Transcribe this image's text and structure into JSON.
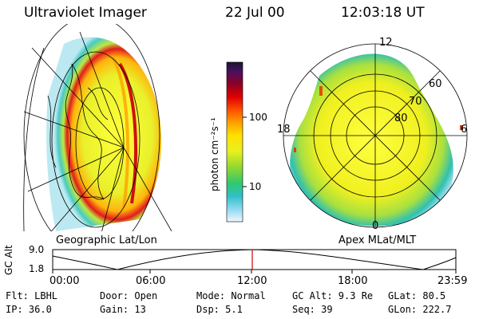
{
  "header": {
    "title": "Ultraviolet Imager",
    "date": "22 Jul 00",
    "time": "12:03:18 UT"
  },
  "colorbar": {
    "unit_label": "photon cm⁻²s⁻¹",
    "ticks": [
      "100",
      "10"
    ]
  },
  "left_panel": {
    "caption": "Geographic Lat/Lon"
  },
  "right_panel": {
    "caption": "Apex MLat/MLT",
    "mlt_labels": {
      "top": "12",
      "left": "18",
      "right": "6",
      "bottom": "0"
    },
    "lat_labels": [
      "60",
      "70",
      "80"
    ]
  },
  "altitude_plot": {
    "ylabel": "GC Alt",
    "y_ticks": [
      "9.0",
      "1.8"
    ],
    "x_ticks": [
      "00:00",
      "06:00",
      "12:00",
      "18:00",
      "23:59"
    ],
    "current_time_marker": "12:03"
  },
  "status": {
    "row1": {
      "flt": "Flt: LBHL",
      "door": "Door: Open",
      "mode": "Mode: Normal",
      "gc_alt": "GC Alt: 9.3 Re",
      "glat": "GLat:  80.5"
    },
    "row2": {
      "ip": "IP: 36.0",
      "gain": "Gain: 13",
      "dsp": "Dsp:     5.1",
      "seq": "Seq: 39",
      "glon": "GLon: 222.7"
    }
  },
  "colors": {
    "marker": "#d00000",
    "background": "#ffffff"
  }
}
